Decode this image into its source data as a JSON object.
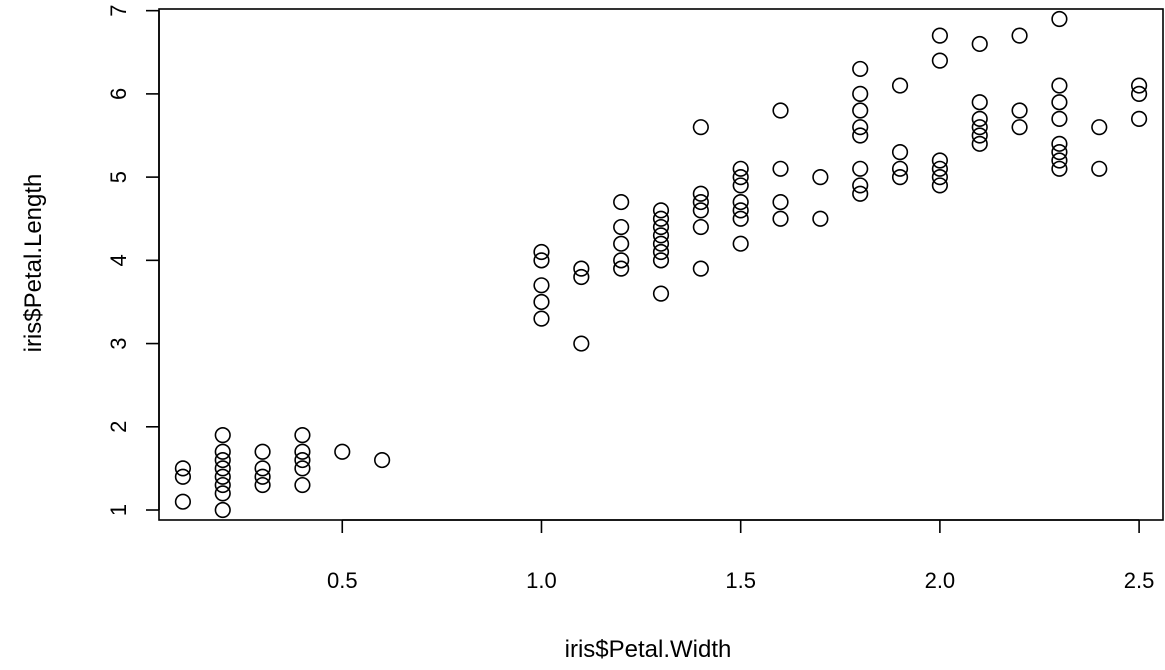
{
  "chart_data": {
    "type": "scatter",
    "title": "",
    "xlabel": "iris$Petal.Width",
    "ylabel": "iris$Petal.Length",
    "xlim": [
      0.04,
      2.56
    ],
    "ylim": [
      0.88,
      7.02
    ],
    "xticks": [
      0.5,
      1.0,
      1.5,
      2.0,
      2.5
    ],
    "xtick_labels": [
      "0.5",
      "1.0",
      "1.5",
      "2.0",
      "2.5"
    ],
    "yticks": [
      1,
      2,
      3,
      4,
      5,
      6,
      7
    ],
    "ytick_labels": [
      "1",
      "2",
      "3",
      "4",
      "5",
      "6",
      "7"
    ],
    "grid": false,
    "marker": "open-circle",
    "points": [
      [
        0.1,
        1.1
      ],
      [
        0.1,
        1.4
      ],
      [
        0.1,
        1.5
      ],
      [
        0.2,
        1.0
      ],
      [
        0.2,
        1.2
      ],
      [
        0.2,
        1.3
      ],
      [
        0.2,
        1.4
      ],
      [
        0.2,
        1.5
      ],
      [
        0.2,
        1.6
      ],
      [
        0.2,
        1.7
      ],
      [
        0.2,
        1.9
      ],
      [
        0.3,
        1.3
      ],
      [
        0.3,
        1.4
      ],
      [
        0.3,
        1.5
      ],
      [
        0.3,
        1.7
      ],
      [
        0.4,
        1.3
      ],
      [
        0.4,
        1.5
      ],
      [
        0.4,
        1.6
      ],
      [
        0.4,
        1.7
      ],
      [
        0.4,
        1.9
      ],
      [
        0.5,
        1.7
      ],
      [
        0.6,
        1.6
      ],
      [
        1.0,
        3.3
      ],
      [
        1.0,
        3.5
      ],
      [
        1.0,
        3.7
      ],
      [
        1.0,
        4.0
      ],
      [
        1.0,
        4.1
      ],
      [
        1.1,
        3.0
      ],
      [
        1.1,
        3.8
      ],
      [
        1.1,
        3.9
      ],
      [
        1.2,
        3.9
      ],
      [
        1.2,
        4.0
      ],
      [
        1.2,
        4.2
      ],
      [
        1.2,
        4.4
      ],
      [
        1.2,
        4.7
      ],
      [
        1.3,
        3.6
      ],
      [
        1.3,
        4.0
      ],
      [
        1.3,
        4.1
      ],
      [
        1.3,
        4.2
      ],
      [
        1.3,
        4.3
      ],
      [
        1.3,
        4.4
      ],
      [
        1.3,
        4.5
      ],
      [
        1.3,
        4.6
      ],
      [
        1.4,
        3.9
      ],
      [
        1.4,
        4.4
      ],
      [
        1.4,
        4.6
      ],
      [
        1.4,
        4.7
      ],
      [
        1.4,
        4.8
      ],
      [
        1.4,
        5.6
      ],
      [
        1.5,
        4.2
      ],
      [
        1.5,
        4.5
      ],
      [
        1.5,
        4.6
      ],
      [
        1.5,
        4.7
      ],
      [
        1.5,
        4.9
      ],
      [
        1.5,
        5.0
      ],
      [
        1.5,
        5.1
      ],
      [
        1.6,
        4.5
      ],
      [
        1.6,
        4.7
      ],
      [
        1.6,
        5.1
      ],
      [
        1.6,
        5.8
      ],
      [
        1.7,
        4.5
      ],
      [
        1.7,
        5.0
      ],
      [
        1.8,
        4.8
      ],
      [
        1.8,
        4.9
      ],
      [
        1.8,
        5.1
      ],
      [
        1.8,
        5.5
      ],
      [
        1.8,
        5.6
      ],
      [
        1.8,
        5.8
      ],
      [
        1.8,
        6.0
      ],
      [
        1.8,
        6.3
      ],
      [
        1.9,
        5.0
      ],
      [
        1.9,
        5.1
      ],
      [
        1.9,
        5.3
      ],
      [
        1.9,
        6.1
      ],
      [
        2.0,
        4.9
      ],
      [
        2.0,
        5.0
      ],
      [
        2.0,
        5.1
      ],
      [
        2.0,
        5.2
      ],
      [
        2.0,
        6.4
      ],
      [
        2.0,
        6.7
      ],
      [
        2.1,
        5.4
      ],
      [
        2.1,
        5.5
      ],
      [
        2.1,
        5.6
      ],
      [
        2.1,
        5.7
      ],
      [
        2.1,
        5.9
      ],
      [
        2.1,
        6.6
      ],
      [
        2.2,
        5.6
      ],
      [
        2.2,
        5.8
      ],
      [
        2.2,
        6.7
      ],
      [
        2.3,
        5.1
      ],
      [
        2.3,
        5.2
      ],
      [
        2.3,
        5.3
      ],
      [
        2.3,
        5.4
      ],
      [
        2.3,
        5.7
      ],
      [
        2.3,
        5.9
      ],
      [
        2.3,
        6.1
      ],
      [
        2.3,
        6.9
      ],
      [
        2.4,
        5.1
      ],
      [
        2.4,
        5.6
      ],
      [
        2.5,
        5.7
      ],
      [
        2.5,
        6.0
      ],
      [
        2.5,
        6.1
      ]
    ]
  }
}
